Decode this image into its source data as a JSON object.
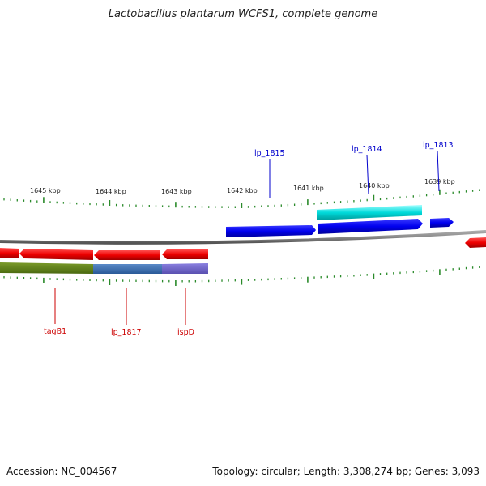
{
  "title": "Lactobacillus plantarum WCFS1, complete genome",
  "footer": {
    "accession": "Accession: NC_004567",
    "stats": "Topology: circular; Length: 3,308,274 bp; Genes: 3,093"
  },
  "colors": {
    "backbone": "#808080",
    "tick": "#2a8a2a",
    "forward_gene": "#0000ee",
    "reverse_gene": "#ee0000",
    "cyan_feature": "#00d8d8",
    "label_top": "#0000cc",
    "label_bottom": "#cc0000"
  },
  "kbp_labels": [
    {
      "text": "1645 kbp",
      "pos_kbp": 1645
    },
    {
      "text": "1644 kbp",
      "pos_kbp": 1644
    },
    {
      "text": "1643 kbp",
      "pos_kbp": 1643
    },
    {
      "text": "1642 kbp",
      "pos_kbp": 1642
    },
    {
      "text": "1641 kbp",
      "pos_kbp": 1641
    },
    {
      "text": "1640 kbp",
      "pos_kbp": 1640
    },
    {
      "text": "1639 kbp",
      "pos_kbp": 1639
    }
  ],
  "top_gene_labels": [
    {
      "text": "lp_1815"
    },
    {
      "text": "lp_1814"
    },
    {
      "text": "lp_1813"
    }
  ],
  "bottom_gene_labels": [
    {
      "text": "tagB1"
    },
    {
      "text": "lp_1817"
    },
    {
      "text": "ispD"
    }
  ]
}
